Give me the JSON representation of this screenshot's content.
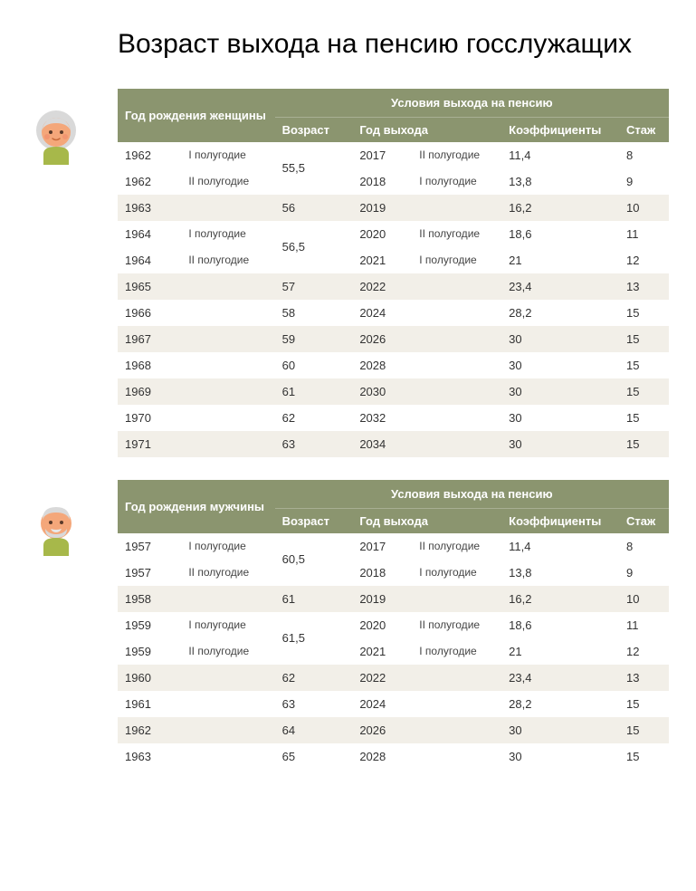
{
  "title": "Возраст выхода на пенсию госслужащих",
  "colors": {
    "header_bg": "#8b956f",
    "header_text": "#ffffff",
    "row_alt": "#f2efe8",
    "row_base": "#ffffff",
    "text": "#333333",
    "woman_skin": "#f4a77a",
    "woman_hair": "#d9d9d9",
    "woman_shirt": "#a7b84a",
    "man_skin": "#f4a77a",
    "man_hair": "#d9d9d9",
    "man_shirt": "#a7b84a"
  },
  "typography": {
    "title_fontsize": 30,
    "table_fontsize": 13
  },
  "headers": {
    "conditions": "Условия выхода на пенсию",
    "age": "Возраст",
    "exit_year": "Год выхода",
    "coef": "Коэффициенты",
    "exp": "Стаж"
  },
  "women": {
    "group_label": "Год рождения женщины",
    "rows": [
      {
        "year": "1962",
        "half": "I полугодие",
        "age": "55,5",
        "age_rowspan": 2,
        "exit_year": "2017",
        "exit_half": "II полугодие",
        "coef": "11,4",
        "exp": "8",
        "stripe": "a"
      },
      {
        "year": "1962",
        "half": "II полугодие",
        "age": "",
        "exit_year": "2018",
        "exit_half": "I полугодие",
        "coef": "13,8",
        "exp": "9",
        "stripe": "a"
      },
      {
        "year": "1963",
        "half": "",
        "age": "56",
        "exit_year": "2019",
        "exit_half": "",
        "coef": "16,2",
        "exp": "10",
        "stripe": "b"
      },
      {
        "year": "1964",
        "half": "I полугодие",
        "age": "56,5",
        "age_rowspan": 2,
        "exit_year": "2020",
        "exit_half": "II полугодие",
        "coef": "18,6",
        "exp": "11",
        "stripe": "a"
      },
      {
        "year": "1964",
        "half": "II полугодие",
        "age": "",
        "exit_year": "2021",
        "exit_half": "I полугодие",
        "coef": "21",
        "exp": "12",
        "stripe": "a"
      },
      {
        "year": "1965",
        "half": "",
        "age": "57",
        "exit_year": "2022",
        "exit_half": "",
        "coef": "23,4",
        "exp": "13",
        "stripe": "b"
      },
      {
        "year": "1966",
        "half": "",
        "age": "58",
        "exit_year": "2024",
        "exit_half": "",
        "coef": "28,2",
        "exp": "15",
        "stripe": "a"
      },
      {
        "year": "1967",
        "half": "",
        "age": "59",
        "exit_year": "2026",
        "exit_half": "",
        "coef": "30",
        "exp": "15",
        "stripe": "b"
      },
      {
        "year": "1968",
        "half": "",
        "age": "60",
        "exit_year": "2028",
        "exit_half": "",
        "coef": "30",
        "exp": "15",
        "stripe": "a"
      },
      {
        "year": "1969",
        "half": "",
        "age": "61",
        "exit_year": "2030",
        "exit_half": "",
        "coef": "30",
        "exp": "15",
        "stripe": "b"
      },
      {
        "year": "1970",
        "half": "",
        "age": "62",
        "exit_year": "2032",
        "exit_half": "",
        "coef": "30",
        "exp": "15",
        "stripe": "a"
      },
      {
        "year": "1971",
        "half": "",
        "age": "63",
        "exit_year": "2034",
        "exit_half": "",
        "coef": "30",
        "exp": "15",
        "stripe": "b"
      }
    ]
  },
  "men": {
    "group_label": "Год рождения мужчины",
    "rows": [
      {
        "year": "1957",
        "half": "I полугодие",
        "age": "60,5",
        "age_rowspan": 2,
        "exit_year": "2017",
        "exit_half": "II полугодие",
        "coef": "11,4",
        "exp": "8",
        "stripe": "a"
      },
      {
        "year": "1957",
        "half": "II полугодие",
        "age": "",
        "exit_year": "2018",
        "exit_half": "I полугодие",
        "coef": "13,8",
        "exp": "9",
        "stripe": "a"
      },
      {
        "year": "1958",
        "half": "",
        "age": "61",
        "exit_year": "2019",
        "exit_half": "",
        "coef": "16,2",
        "exp": "10",
        "stripe": "b"
      },
      {
        "year": "1959",
        "half": "I полугодие",
        "age": "61,5",
        "age_rowspan": 2,
        "exit_year": "2020",
        "exit_half": "II полугодие",
        "coef": "18,6",
        "exp": "11",
        "stripe": "a"
      },
      {
        "year": "1959",
        "half": "II полугодие",
        "age": "",
        "exit_year": "2021",
        "exit_half": "I полугодие",
        "coef": "21",
        "exp": "12",
        "stripe": "a"
      },
      {
        "year": "1960",
        "half": "",
        "age": "62",
        "exit_year": "2022",
        "exit_half": "",
        "coef": "23,4",
        "exp": "13",
        "stripe": "b"
      },
      {
        "year": "1961",
        "half": "",
        "age": "63",
        "exit_year": "2024",
        "exit_half": "",
        "coef": "28,2",
        "exp": "15",
        "stripe": "a"
      },
      {
        "year": "1962",
        "half": "",
        "age": "64",
        "exit_year": "2026",
        "exit_half": "",
        "coef": "30",
        "exp": "15",
        "stripe": "b"
      },
      {
        "year": "1963",
        "half": "",
        "age": "65",
        "exit_year": "2028",
        "exit_half": "",
        "coef": "30",
        "exp": "15",
        "stripe": "a"
      }
    ]
  }
}
